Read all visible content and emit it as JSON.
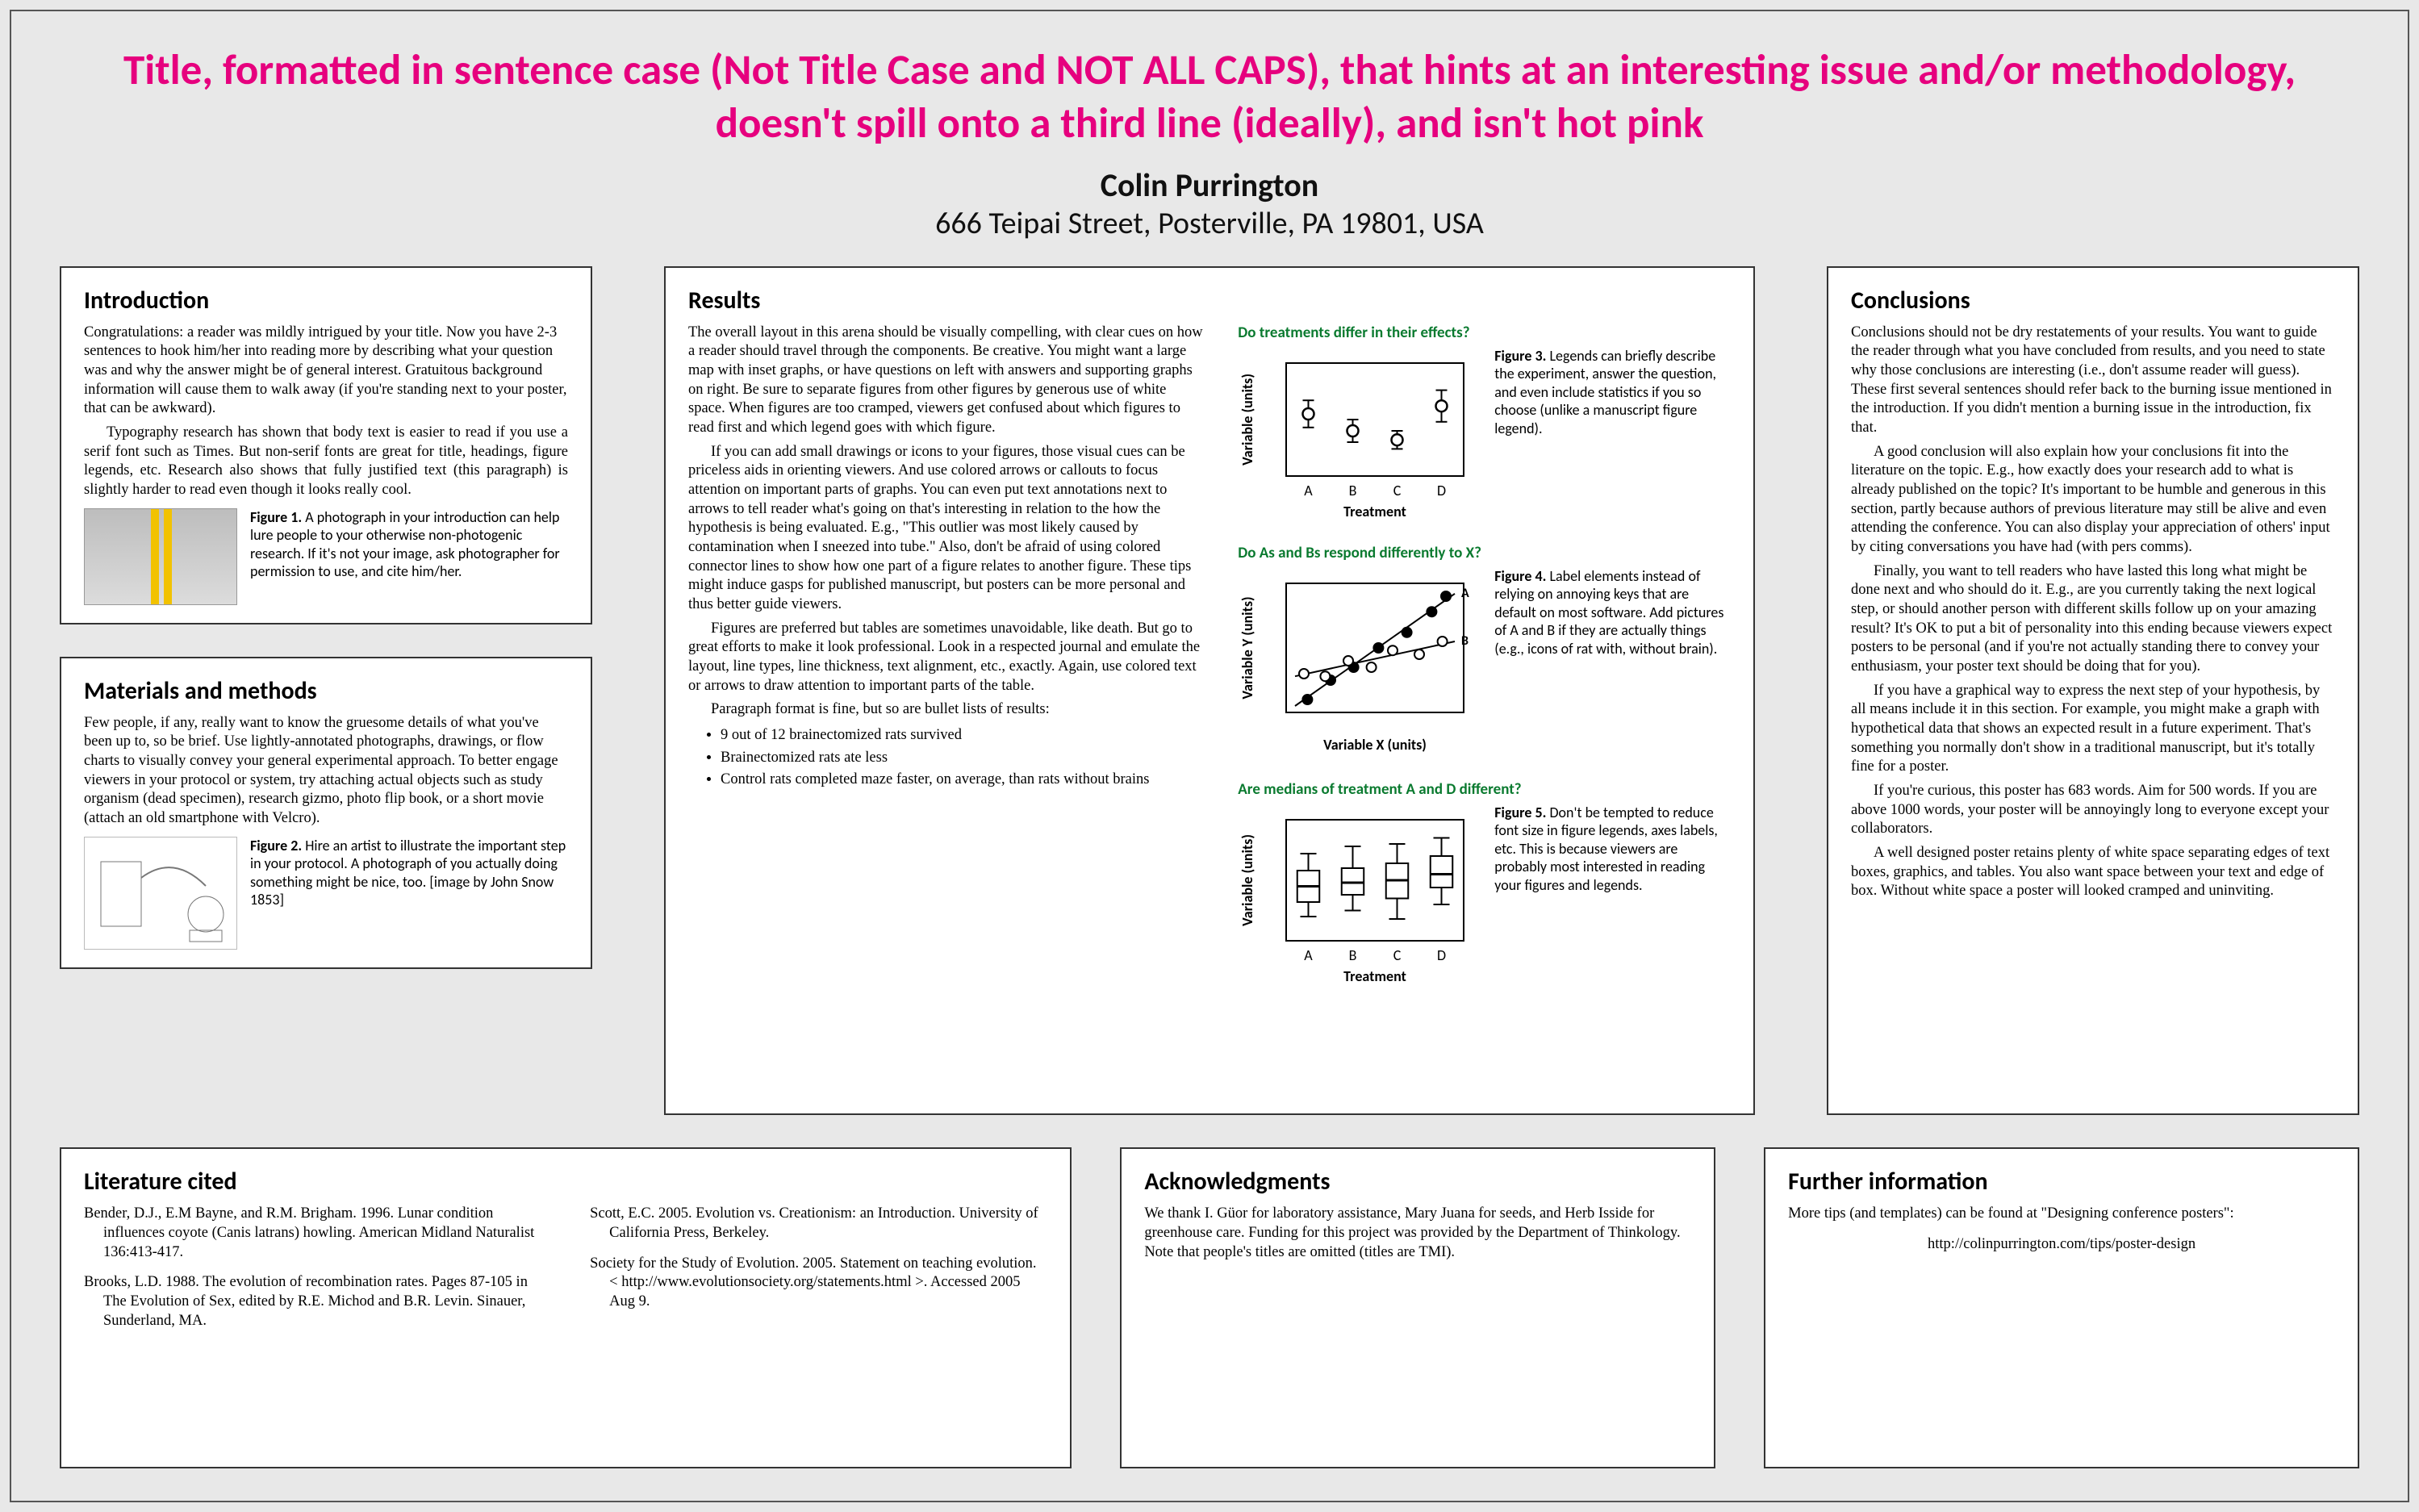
{
  "title": "Title, formatted in sentence case (Not Title Case and NOT ALL CAPS), that hints at an interesting issue and/or methodology, doesn't spill onto a third line (ideally), and isn't hot pink",
  "author": "Colin Purrington",
  "affiliation": "666 Teipai Street, Posterville, PA  19801, USA",
  "intro": {
    "heading": "Introduction",
    "p1": "Congratulations: a reader was mildly intrigued by your title. Now you have 2-3 sentences to hook him/her into reading more by describing what your question was and why the answer might be of general interest. Gratuitous background information will cause them to walk away (if you're standing next to your poster, that can be awkward).",
    "p2": "Typography research has shown that body text is easier to read if you use a serif font such as Times. But non-serif fonts are great for title, headings, figure legends, etc. Research also shows that fully justified text (this paragraph) is slightly harder to read even though it looks really cool.",
    "fig1": "Figure 1. A photograph in your introduction can help lure people to your otherwise non-photogenic research. If it's not your image, ask photographer for permission to use, and cite him/her."
  },
  "methods": {
    "heading": "Materials and methods",
    "p1": "Few people, if any, really want to know the gruesome details of what you've been up to, so be brief. Use lightly-annotated photographs, drawings, or flow charts to visually convey your general experimental approach. To better engage viewers in your protocol or system, try attaching actual objects such as study organism (dead specimen), research gizmo, photo flip book, or a short movie (attach an old smartphone with Velcro).",
    "fig2": "Figure 2. Hire an artist to illustrate the important step in your protocol. A photograph of you actually doing something might be nice, too. [image by John Snow 1853]"
  },
  "results": {
    "heading": "Results",
    "p1": "The overall layout in this arena should be visually compelling, with clear cues on how a reader should travel through the components. Be creative. You might want a large map with inset graphs, or have questions on left with answers and supporting graphs on right. Be sure to separate figures from other figures by generous use of white space. When figures are too cramped, viewers get confused about which figures to read first and which legend goes with which figure.",
    "p2": "If you can add small drawings or icons to your figures, those visual cues can be priceless aids in orienting viewers. And use colored arrows or callouts to focus attention on important parts of graphs. You can even put text annotations next to arrows to tell reader what's going on that's interesting in relation to the how the hypothesis is being evaluated. E.g., \"This outlier was most likely caused by contamination when I sneezed into tube.\" Also, don't be afraid of using colored connector lines to show how one part of a figure relates to another figure. These tips might induce gasps for published manuscript, but posters can be more personal and thus better guide viewers.",
    "p3": "Figures are preferred but tables are sometimes unavoidable, like death. But go to great efforts to make it look professional. Look in a respected journal and emulate the layout, line types, line thickness, text alignment, etc., exactly. Again, use colored text or arrows to draw attention to important parts of the table.",
    "p4": "Paragraph format is fine, but so are bullet lists of results:",
    "b1": "9 out of 12 brainectomized rats survived",
    "b2": "Brainectomized rats ate less",
    "b3": "Control rats completed maze faster, on average, than rats without brains",
    "q1": "Do treatments differ in their effects?",
    "fig3cap": "Figure 3. Legends can briefly describe the experiment, answer the question, and even include statistics if you so choose (unlike a manuscript figure legend).",
    "q2": "Do As and Bs respond differently to X?",
    "fig4cap": "Figure 4. Label elements instead of relying on annoying keys that are default on most software. Add pictures of A and B if they are actually things (e.g., icons of rat with, without brain).",
    "q3": "Are medians of treatment A and D different?",
    "fig5cap": "Figure 5. Don't be tempted to reduce font size in figure legends, axes labels, etc. This is because viewers are probably most interested in reading your figures and legends.",
    "fig3": {
      "type": "errorbar",
      "categories": [
        "A",
        "B",
        "C",
        "D"
      ],
      "means": [
        0.55,
        0.4,
        0.32,
        0.62
      ],
      "err": [
        0.12,
        0.1,
        0.08,
        0.14
      ],
      "ylabel": "Variable (units)",
      "xlabel": "Treatment",
      "marker": "circle-open",
      "marker_size": 9,
      "axis_color": "#000",
      "background": "#fff"
    },
    "fig4": {
      "type": "scatter",
      "xlabel": "Variable X (units)",
      "ylabel": "Variable Y (units)",
      "series": [
        {
          "label": "A",
          "marker": "circle-filled",
          "color": "#000",
          "points": [
            [
              0.12,
              0.1
            ],
            [
              0.25,
              0.25
            ],
            [
              0.38,
              0.35
            ],
            [
              0.52,
              0.5
            ],
            [
              0.68,
              0.62
            ],
            [
              0.82,
              0.78
            ],
            [
              0.9,
              0.9
            ]
          ],
          "fit": [
            [
              0.05,
              0.05
            ],
            [
              0.95,
              0.92
            ]
          ]
        },
        {
          "label": "B",
          "marker": "circle-open",
          "color": "#000",
          "points": [
            [
              0.1,
              0.3
            ],
            [
              0.22,
              0.28
            ],
            [
              0.35,
              0.4
            ],
            [
              0.48,
              0.35
            ],
            [
              0.6,
              0.48
            ],
            [
              0.75,
              0.45
            ],
            [
              0.88,
              0.55
            ]
          ],
          "fit": [
            [
              0.05,
              0.28
            ],
            [
              0.95,
              0.55
            ]
          ]
        }
      ],
      "background": "#fff"
    },
    "fig5": {
      "type": "boxplot",
      "categories": [
        "A",
        "B",
        "C",
        "D"
      ],
      "boxes": [
        {
          "min": 0.2,
          "q1": 0.32,
          "med": 0.45,
          "q3": 0.58,
          "max": 0.72
        },
        {
          "min": 0.25,
          "q1": 0.38,
          "med": 0.48,
          "q3": 0.6,
          "max": 0.78
        },
        {
          "min": 0.18,
          "q1": 0.35,
          "med": 0.5,
          "q3": 0.64,
          "max": 0.8
        },
        {
          "min": 0.3,
          "q1": 0.44,
          "med": 0.55,
          "q3": 0.7,
          "max": 0.85
        }
      ],
      "ylabel": "Variable (units)",
      "xlabel": "Treatment",
      "box_color": "#000",
      "background": "#fff"
    }
  },
  "conclusions": {
    "heading": "Conclusions",
    "p1": "Conclusions should not be dry restatements of your results. You want to guide the reader through what you have concluded from results, and you need to state why those conclusions are interesting (i.e., don't assume reader will guess). These first several sentences should refer back to the burning issue mentioned in the introduction. If you didn't mention a burning issue in the introduction, fix that.",
    "p2": "A good conclusion will also explain how your conclusions fit into the literature on the topic. E.g., how exactly does your research add to what is already published on the topic? It's important to be humble and generous in this section, partly because authors of previous literature may still be alive and even attending the conference. You can also display your appreciation of others' input by citing conversations you have had (with pers comms).",
    "p3": "Finally, you want to tell readers who have lasted this long what might be done next and who should do it. E.g., are you currently taking the next logical step, or should another person with different skills follow up on your amazing result? It's OK to put a bit of personality into this ending because viewers expect posters to be personal (and if you're not actually standing there to convey your enthusiasm, your poster text should be doing that for you).",
    "p4": "If you have a graphical way to express the next step of your hypothesis, by all means include it in this section. For example, you might make a graph with hypothetical data that shows an expected result in a future experiment. That's something you normally don't show in a traditional manuscript, but it's totally fine for a poster.",
    "p5": "If you're curious, this poster has 683 words. Aim for 500 words. If you are above 1000 words, your poster will be annoyingly long to everyone except your collaborators.",
    "p6": "A well designed poster retains plenty of white space separating edges of text boxes, graphics, and tables. You also want space between your text and edge of box. Without white space a poster will looked cramped and uninviting."
  },
  "lit": {
    "heading": "Literature cited",
    "r1": "Bender, D.J., E.M Bayne, and R.M. Brigham. 1996. Lunar condition influences coyote (Canis latrans) howling. American Midland Naturalist 136:413-417.",
    "r2": "Brooks, L.D. 1988. The evolution of recombination rates. Pages 87-105 in The Evolution of Sex, edited by R.E. Michod and B.R. Levin. Sinauer, Sunderland, MA.",
    "r3": "Scott, E.C.  2005. Evolution vs. Creationism: an Introduction. University of California Press, Berkeley.",
    "r4": "Society for the Study of Evolution. 2005. Statement on teaching evolution. < http://www.evolutionsociety.org/statements.html >. Accessed 2005 Aug 9."
  },
  "ack": {
    "heading": "Acknowledgments",
    "p1": "We thank I. Güor for laboratory assistance, Mary Juana for seeds, and Herb Isside for greenhouse care. Funding for this project was provided by the Department of Thinkology. Note that people's titles are omitted (titles are TMI)."
  },
  "further": {
    "heading": "Further information",
    "p1": "More tips (and templates) can be found at \"Designing conference posters\":",
    "url": "http://colinpurrington.com/tips/poster-design"
  },
  "colors": {
    "title": "#e6007e",
    "page_bg": "#e8e8e8",
    "box_bg": "#ffffff",
    "box_border": "#333333",
    "question_green": "#0a7a2f"
  }
}
